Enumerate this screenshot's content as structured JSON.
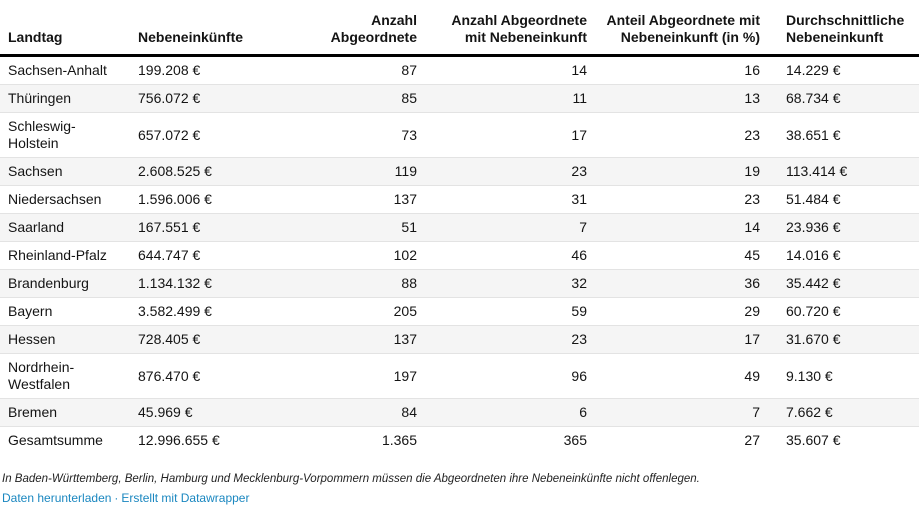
{
  "chart_data": {
    "type": "table",
    "title": "",
    "columns": [
      "Landtag",
      "Nebeneinkünfte",
      "Anzahl Abgeordnete",
      "Anzahl Abgeordnete mit Nebeneinkunft",
      "Anteil Abgeordnete mit Nebeneinkunft (in %)",
      "Durchschnittliche Nebeneinkunft"
    ],
    "column_alignments": [
      "left",
      "left",
      "right",
      "right",
      "right",
      "left"
    ],
    "rows": [
      [
        "Sachsen-Anhalt",
        "199.208 €",
        "87",
        "14",
        "16",
        "14.229 €"
      ],
      [
        "Thüringen",
        "756.072 €",
        "85",
        "11",
        "13",
        "68.734 €"
      ],
      [
        "Schleswig-Holstein",
        "657.072 €",
        "73",
        "17",
        "23",
        "38.651 €"
      ],
      [
        "Sachsen",
        "2.608.525 €",
        "119",
        "23",
        "19",
        "113.414 €"
      ],
      [
        "Niedersachsen",
        "1.596.006 €",
        "137",
        "31",
        "23",
        "51.484 €"
      ],
      [
        "Saarland",
        "167.551 €",
        "51",
        "7",
        "14",
        "23.936 €"
      ],
      [
        "Rheinland-Pfalz",
        "644.747 €",
        "102",
        "46",
        "45",
        "14.016 €"
      ],
      [
        "Brandenburg",
        "1.134.132 €",
        "88",
        "32",
        "36",
        "35.442 €"
      ],
      [
        "Bayern",
        "3.582.499 €",
        "205",
        "59",
        "29",
        "60.720 €"
      ],
      [
        "Hessen",
        "728.405 €",
        "137",
        "23",
        "17",
        "31.670 €"
      ],
      [
        "Nordrhein-Westfalen",
        "876.470 €",
        "197",
        "96",
        "49",
        "9.130 €"
      ],
      [
        "Bremen",
        "45.969 €",
        "84",
        "6",
        "7",
        "7.662 €"
      ],
      [
        "Gesamtsumme",
        "12.996.655 €",
        "1.365",
        "365",
        "27",
        "35.607 €"
      ]
    ],
    "layout_hints": {
      "zebra_striping": true,
      "header_rule": "thick black bottom border",
      "total_row_label": "Gesamtsumme"
    }
  },
  "footer": {
    "note": "In Baden-Württemberg, Berlin, Hamburg und Mecklenburg-Vorpommern müssen die Abgeordneten ihre Nebeneinkünfte nicht offenlegen.",
    "links": [
      {
        "label": "Daten herunterladen"
      },
      {
        "label": "Erstellt mit Datawrapper"
      }
    ],
    "separator": "·"
  },
  "colors": {
    "link_blue": "#1a87c0",
    "zebra_row": "#f5f5f5",
    "row_divider": "#e3e3e3",
    "header_rule": "#000000",
    "text": "#141414"
  }
}
